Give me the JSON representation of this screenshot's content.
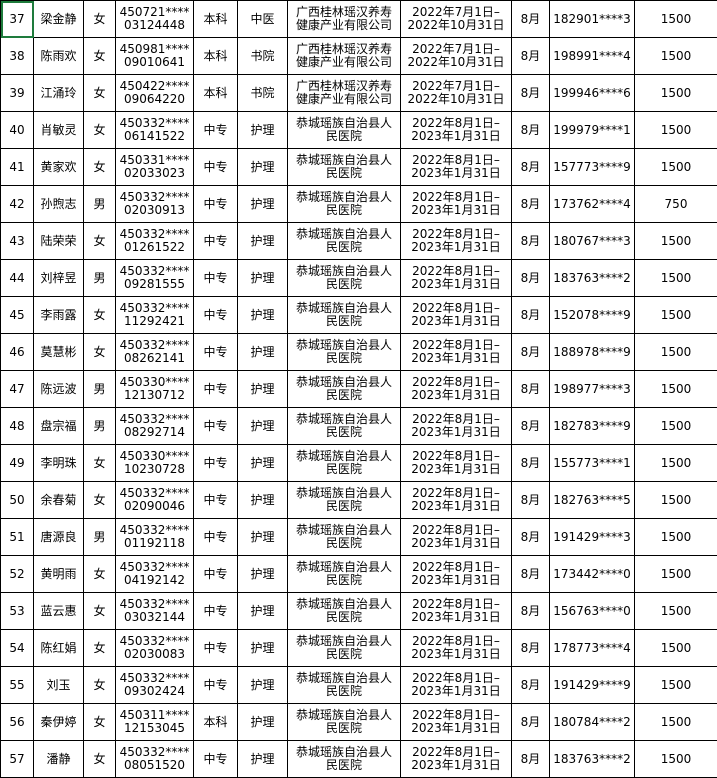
{
  "table": {
    "rows": [
      [
        "37",
        "梁金静",
        "女",
        [
          "450721****",
          "03124448"
        ],
        "本科",
        "中医",
        [
          "广西桂林瑶汉养寿",
          "健康产业有限公司"
        ],
        [
          "2022年7月1日–",
          "2022年10月31日"
        ],
        "8月",
        "182901****3",
        "1500"
      ],
      [
        "38",
        "陈雨欢",
        "女",
        [
          "450981****",
          "09010641"
        ],
        "本科",
        "书院",
        [
          "广西桂林瑶汉养寿",
          "健康产业有限公司"
        ],
        [
          "2022年7月1日–",
          "2022年10月31日"
        ],
        "8月",
        "198991****4",
        "1500"
      ],
      [
        "39",
        "江涌玲",
        "女",
        [
          "450422****",
          "09064220"
        ],
        "本科",
        "书院",
        [
          "广西桂林瑶汉养寿",
          "健康产业有限公司"
        ],
        [
          "2022年7月1日–",
          "2022年10月31日"
        ],
        "8月",
        "199946****6",
        "1500"
      ],
      [
        "40",
        "肖敏灵",
        "女",
        [
          "450332****",
          "06141522"
        ],
        "中专",
        "护理",
        [
          "恭城瑶族自治县人",
          "民医院"
        ],
        [
          "2022年8月1日–",
          "2023年1月31日"
        ],
        "8月",
        "199979****1",
        "1500"
      ],
      [
        "41",
        "黄家欢",
        "女",
        [
          "450331****",
          "02033023"
        ],
        "中专",
        "护理",
        [
          "恭城瑶族自治县人",
          "民医院"
        ],
        [
          "2022年8月1日–",
          "2023年1月31日"
        ],
        "8月",
        "157773****9",
        "1500"
      ],
      [
        "42",
        "孙煦志",
        "男",
        [
          "450332****",
          "02030913"
        ],
        "中专",
        "护理",
        [
          "恭城瑶族自治县人",
          "民医院"
        ],
        [
          "2022年8月1日–",
          "2023年1月31日"
        ],
        "8月",
        "173762****4",
        "750"
      ],
      [
        "43",
        "陆荣荣",
        "女",
        [
          "450332****",
          "01261522"
        ],
        "中专",
        "护理",
        [
          "恭城瑶族自治县人",
          "民医院"
        ],
        [
          "2022年8月1日–",
          "2023年1月31日"
        ],
        "8月",
        "180767****3",
        "1500"
      ],
      [
        "44",
        "刘梓昱",
        "男",
        [
          "450332****",
          "09281555"
        ],
        "中专",
        "护理",
        [
          "恭城瑶族自治县人",
          "民医院"
        ],
        [
          "2022年8月1日–",
          "2023年1月31日"
        ],
        "8月",
        "183763****2",
        "1500"
      ],
      [
        "45",
        "李雨露",
        "女",
        [
          "450332****",
          "11292421"
        ],
        "中专",
        "护理",
        [
          "恭城瑶族自治县人",
          "民医院"
        ],
        [
          "2022年8月1日–",
          "2023年1月31日"
        ],
        "8月",
        "152078****9",
        "1500"
      ],
      [
        "46",
        "莫慧彬",
        "女",
        [
          "450332****",
          "08262141"
        ],
        "中专",
        "护理",
        [
          "恭城瑶族自治县人",
          "民医院"
        ],
        [
          "2022年8月1日–",
          "2023年1月31日"
        ],
        "8月",
        "188978****9",
        "1500"
      ],
      [
        "47",
        "陈远波",
        "男",
        [
          "450330****",
          "12130712"
        ],
        "中专",
        "护理",
        [
          "恭城瑶族自治县人",
          "民医院"
        ],
        [
          "2022年8月1日–",
          "2023年1月31日"
        ],
        "8月",
        "198977****3",
        "1500"
      ],
      [
        "48",
        "盘宗福",
        "男",
        [
          "450332****",
          "08292714"
        ],
        "中专",
        "护理",
        [
          "恭城瑶族自治县人",
          "民医院"
        ],
        [
          "2022年8月1日–",
          "2023年1月31日"
        ],
        "8月",
        "182783****9",
        "1500"
      ],
      [
        "49",
        "李明珠",
        "女",
        [
          "450330****",
          "10230728"
        ],
        "中专",
        "护理",
        [
          "恭城瑶族自治县人",
          "民医院"
        ],
        [
          "2022年8月1日–",
          "2023年1月31日"
        ],
        "8月",
        "155773****1",
        "1500"
      ],
      [
        "50",
        "余春菊",
        "女",
        [
          "450332****",
          "02090046"
        ],
        "中专",
        "护理",
        [
          "恭城瑶族自治县人",
          "民医院"
        ],
        [
          "2022年8月1日–",
          "2023年1月31日"
        ],
        "8月",
        "182763****5",
        "1500"
      ],
      [
        "51",
        "唐源良",
        "男",
        [
          "450332****",
          "01192118"
        ],
        "中专",
        "护理",
        [
          "恭城瑶族自治县人",
          "民医院"
        ],
        [
          "2022年8月1日–",
          "2023年1月31日"
        ],
        "8月",
        "191429****3",
        "1500"
      ],
      [
        "52",
        "黄明雨",
        "女",
        [
          "450332****",
          "04192142"
        ],
        "中专",
        "护理",
        [
          "恭城瑶族自治县人",
          "民医院"
        ],
        [
          "2022年8月1日–",
          "2023年1月31日"
        ],
        "8月",
        "173442****0",
        "1500"
      ],
      [
        "53",
        "蓝云惠",
        "女",
        [
          "450332****",
          "03032144"
        ],
        "中专",
        "护理",
        [
          "恭城瑶族自治县人",
          "民医院"
        ],
        [
          "2022年8月1日–",
          "2023年1月31日"
        ],
        "8月",
        "156763****0",
        "1500"
      ],
      [
        "54",
        "陈红娟",
        "女",
        [
          "450332****",
          "02030083"
        ],
        "中专",
        "护理",
        [
          "恭城瑶族自治县人",
          "民医院"
        ],
        [
          "2022年8月1日–",
          "2023年1月31日"
        ],
        "8月",
        "178773****4",
        "1500"
      ],
      [
        "55",
        "刘玉",
        "女",
        [
          "450332****",
          "09302424"
        ],
        "中专",
        "护理",
        [
          "恭城瑶族自治县人",
          "民医院"
        ],
        [
          "2022年8月1日–",
          "2023年1月31日"
        ],
        "8月",
        "191429****9",
        "1500"
      ],
      [
        "56",
        "秦伊婷",
        "女",
        [
          "450311****",
          "12153045"
        ],
        "本科",
        "护理",
        [
          "恭城瑶族自治县人",
          "民医院"
        ],
        [
          "2022年8月1日–",
          "2023年1月31日"
        ],
        "8月",
        "180784****2",
        "1500"
      ],
      [
        "57",
        "潘静",
        "女",
        [
          "450332****",
          "08051520"
        ],
        "中专",
        "护理",
        [
          "恭城瑶族自治县人",
          "民医院"
        ],
        [
          "2022年8月1日–",
          "2023年1月31日"
        ],
        "8月",
        "183763****2",
        "1500"
      ]
    ]
  }
}
